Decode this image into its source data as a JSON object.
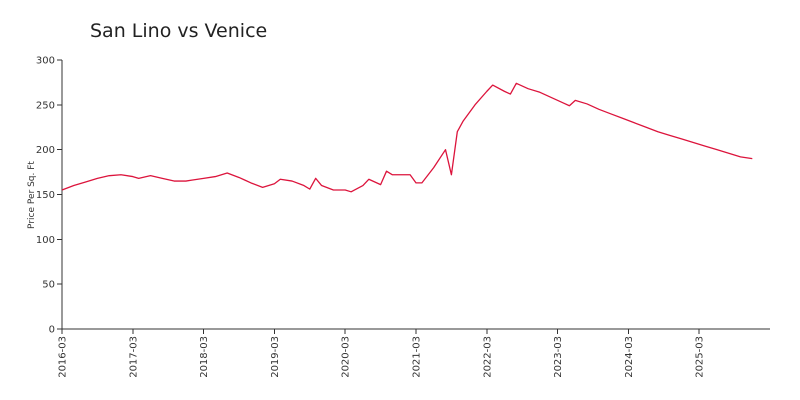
{
  "chart_data": {
    "type": "line",
    "title": "San Lino vs Venice",
    "xlabel": "",
    "ylabel": "Price Per Sq. Ft",
    "ylim": [
      0,
      300
    ],
    "yticks": [
      0,
      50,
      100,
      150,
      200,
      250,
      300
    ],
    "xlim": [
      "2016-03",
      "2026-03"
    ],
    "xticks": [
      "2016-03",
      "2017-03",
      "2018-03",
      "2019-03",
      "2020-03",
      "2021-03",
      "2022-03",
      "2023-03",
      "2024-03",
      "2025-03"
    ],
    "grid": false,
    "legend": "none",
    "color": "#dc143c",
    "series": [
      {
        "x": [
          "2016-03",
          "2016-05",
          "2016-07",
          "2016-09",
          "2016-11",
          "2017-01",
          "2017-03",
          "2017-04",
          "2017-06",
          "2017-08",
          "2017-10",
          "2017-12",
          "2018-01",
          "2018-03",
          "2018-05",
          "2018-07",
          "2018-09",
          "2018-10",
          "2018-11",
          "2019-01",
          "2019-03",
          "2019-04",
          "2019-06",
          "2019-08",
          "2019-09",
          "2019-10",
          "2019-11",
          "2020-01",
          "2020-03",
          "2020-04",
          "2020-06",
          "2020-07",
          "2020-09",
          "2020-10",
          "2020-11",
          "2021-01",
          "2021-02",
          "2021-03",
          "2021-04",
          "2021-06",
          "2021-08",
          "2021-09",
          "2021-10",
          "2021-11",
          "2022-01",
          "2022-03",
          "2022-04",
          "2022-06",
          "2022-07",
          "2022-08",
          "2022-10",
          "2022-12",
          "2023-02",
          "2023-04",
          "2023-05",
          "2023-06",
          "2023-08",
          "2023-10",
          "2023-12",
          "2024-02",
          "2024-04",
          "2024-06",
          "2024-08",
          "2024-10",
          "2024-12",
          "2025-02",
          "2025-04",
          "2025-06",
          "2025-08",
          "2025-10",
          "2025-12"
        ],
        "values": [
          155,
          160,
          164,
          168,
          171,
          172,
          170,
          168,
          171,
          168,
          165,
          165,
          166,
          168,
          170,
          174,
          169,
          166,
          163,
          158,
          162,
          167,
          165,
          160,
          156,
          168,
          160,
          155,
          155,
          153,
          160,
          167,
          161,
          176,
          172,
          172,
          172,
          163,
          163,
          180,
          200,
          172,
          220,
          232,
          250,
          265,
          272,
          265,
          262,
          274,
          268,
          264,
          258,
          252,
          249,
          255,
          251,
          245,
          240,
          235,
          230,
          225,
          220,
          216,
          212,
          208,
          204,
          200,
          196,
          192,
          190
        ]
      }
    ]
  }
}
